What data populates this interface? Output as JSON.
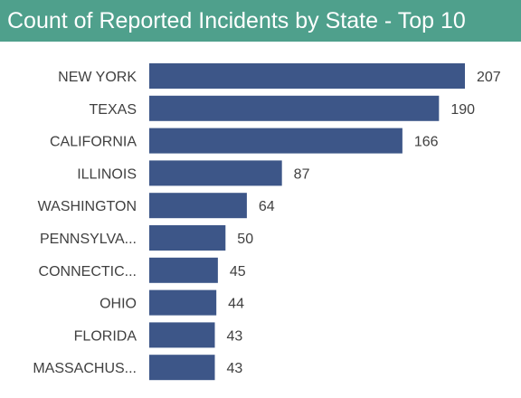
{
  "title": "Count of Reported Incidents by State - Top 10",
  "colors": {
    "header_bg": "#4fa08c",
    "bar": "#3d5688",
    "text": "#404040"
  },
  "chart_data": {
    "type": "bar",
    "orientation": "horizontal",
    "title": "Count of Reported Incidents by State - Top 10",
    "categories": [
      "NEW YORK",
      "TEXAS",
      "CALIFORNIA",
      "ILLINOIS",
      "WASHINGTON",
      "PENNSYLVA...",
      "CONNECTIC...",
      "OHIO",
      "FLORIDA",
      "MASSACHUS..."
    ],
    "values": [
      207,
      190,
      166,
      87,
      64,
      50,
      45,
      44,
      43,
      43
    ],
    "xlim": [
      0,
      207
    ],
    "grid": false,
    "legend": "none",
    "data_labels": true
  }
}
